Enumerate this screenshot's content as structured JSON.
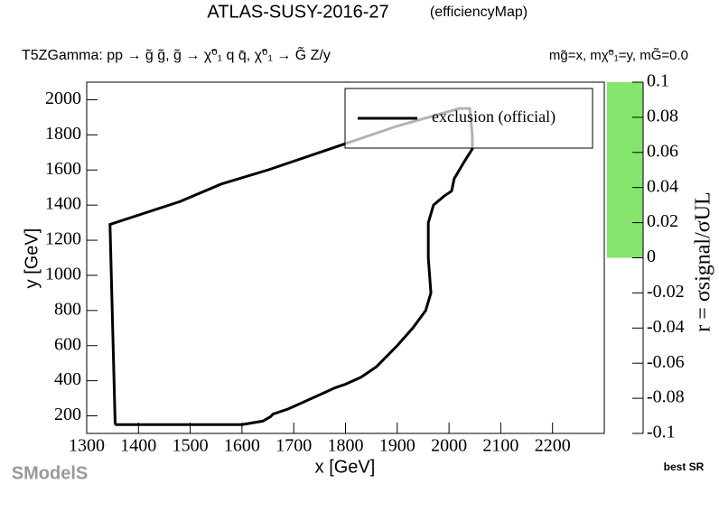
{
  "chart_data": {
    "type": "line",
    "title": "ATLAS-SUSY-2016-27",
    "title_note": "(efficiencyMap)",
    "subtitle": "T5ZGamma: pp  → g̃ g̃, g̃ → χ̃⁰₁ q q̄, χ̃⁰₁ → G̃ Z/y",
    "mass_note": "mg̃=x, mχ̃⁰₁=y, mG̃=0.0",
    "x_label": "x [GeV]",
    "y_label": "y [GeV]",
    "x": [
      1355,
      1345,
      1480,
      1560,
      1650,
      1770,
      1900,
      2020,
      2040,
      2045,
      2045,
      2030,
      2010,
      2005,
      1990,
      1970,
      1960,
      1960,
      1965,
      1955,
      1930,
      1900,
      1860,
      1830,
      1800,
      1780,
      1750,
      1720,
      1690,
      1660,
      1655,
      1640,
      1600,
      1355
    ],
    "series": [
      {
        "name": "exclusion (official)",
        "color": "#000000",
        "values": [
          150,
          1290,
          1420,
          1520,
          1600,
          1720,
          1850,
          1950,
          1950,
          1800,
          1720,
          1650,
          1550,
          1480,
          1450,
          1400,
          1300,
          1100,
          900,
          800,
          700,
          600,
          480,
          420,
          380,
          360,
          320,
          280,
          240,
          210,
          195,
          170,
          150,
          150
        ]
      }
    ],
    "xlim": [
      1300,
      2300
    ],
    "xticks": [
      1300,
      1400,
      1500,
      1600,
      1700,
      1800,
      1900,
      2000,
      2100,
      2200
    ],
    "ylim": [
      100,
      2100
    ],
    "yticks": [
      200,
      400,
      600,
      800,
      1000,
      1200,
      1400,
      1600,
      1800,
      2000
    ],
    "colorbar": {
      "label": "r = σsignal/σUL",
      "zlim": [
        -0.1,
        0.1
      ],
      "zticks": [
        0.1,
        0.08,
        0.06,
        0.04,
        0.02,
        0,
        -0.02,
        -0.04,
        -0.06,
        -0.08,
        -0.1
      ],
      "filled_range": [
        0,
        0.1
      ],
      "color": "#86e56f"
    },
    "legend_position": "upper right",
    "footer": "best SR",
    "logo": "SModelS"
  }
}
